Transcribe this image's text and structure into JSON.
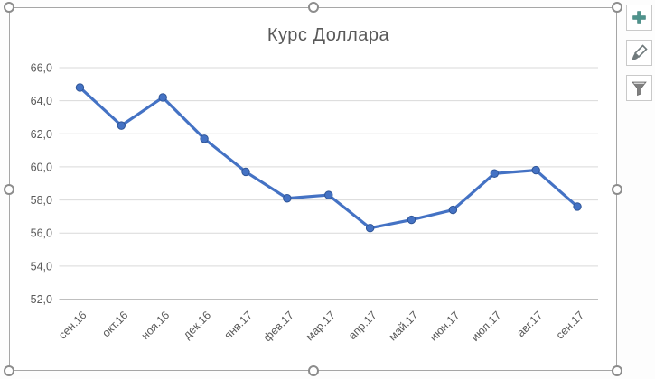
{
  "chart_data": {
    "type": "line",
    "title": "Курс Доллара",
    "categories": [
      "сен.16",
      "окт.16",
      "ноя.16",
      "дек.16",
      "янв.17",
      "фев.17",
      "мар.17",
      "апр.17",
      "май.17",
      "июн.17",
      "июл.17",
      "авг.17",
      "сен.17"
    ],
    "series": [
      {
        "name": "Курс Доллара",
        "values": [
          64.8,
          62.5,
          64.2,
          61.7,
          59.7,
          58.1,
          58.3,
          56.3,
          56.8,
          57.4,
          59.6,
          59.8,
          57.6
        ]
      }
    ],
    "ylim": [
      52,
      66
    ],
    "yticks": [
      66,
      64,
      62,
      60,
      58,
      56,
      54,
      52
    ],
    "ytick_labels": [
      "66,0",
      "64,0",
      "62,0",
      "60,0",
      "58,0",
      "56,0",
      "54,0",
      "52,0"
    ],
    "xlabel": "",
    "ylabel": "",
    "grid": true,
    "legend": "none",
    "marker": "circle",
    "x_label_rotation": -45
  },
  "colors": {
    "series": "#4472C4",
    "marker_edge": "#2F5597",
    "grid": "#D9D9D9",
    "axis_line": "#BFBFBF",
    "text": "#595959",
    "frame": "#A6A6A6",
    "handle": "#8C8C8C",
    "button_border": "#C9C9C9",
    "plus_icon": "#4E938C",
    "icon_gray": "#707A7C"
  },
  "side_buttons": [
    {
      "name": "chart-elements-button",
      "icon": "plus-icon"
    },
    {
      "name": "chart-styles-button",
      "icon": "brush-icon"
    },
    {
      "name": "chart-filters-button",
      "icon": "filter-icon"
    }
  ]
}
